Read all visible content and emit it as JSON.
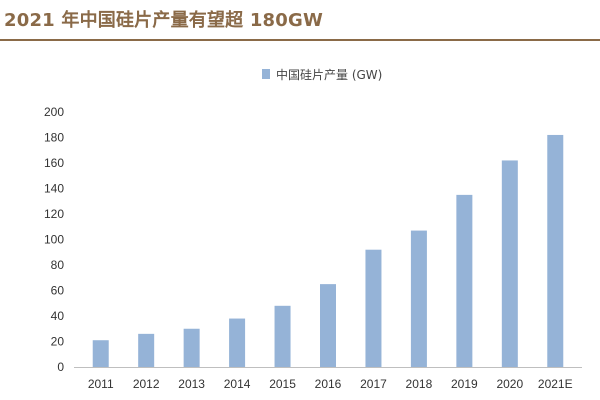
{
  "title": "2021 年中国硅片产量有望超 180GW",
  "colors": {
    "title": "#8a6a48",
    "rule": "#8a6a48",
    "bar": "#95b3d7",
    "axis": "#bfbfbf"
  },
  "chart_data": {
    "type": "bar",
    "categories": [
      "2011",
      "2012",
      "2013",
      "2014",
      "2015",
      "2016",
      "2017",
      "2018",
      "2019",
      "2020",
      "2021E"
    ],
    "series": [
      {
        "name": "中国硅片产量 (GW)",
        "values": [
          21,
          26,
          30,
          38,
          48,
          65,
          92,
          107,
          135,
          162,
          182
        ]
      }
    ],
    "ylim": [
      0,
      200
    ],
    "yticks": [
      0,
      20,
      40,
      60,
      80,
      100,
      120,
      140,
      160,
      180,
      200
    ],
    "xlabel": "",
    "ylabel": "",
    "grid": false,
    "legend_position": "top-center"
  }
}
